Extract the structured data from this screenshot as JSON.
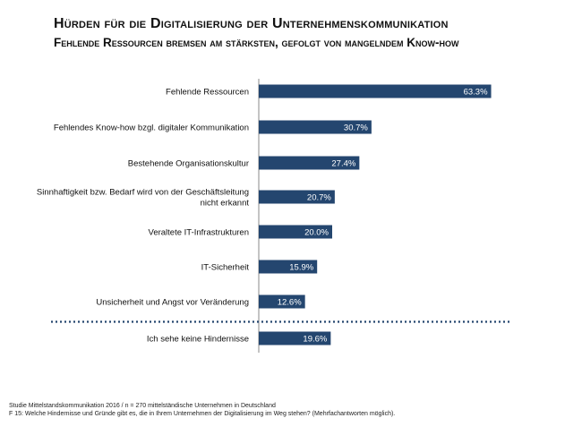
{
  "header": {
    "title": "Hürden für die Digitalisierung der Unternehmenskommunikation",
    "subtitle": "Fehlende Ressourcen bremsen am stärksten, gefolgt von mangelndem Know-how"
  },
  "chart_data": {
    "type": "bar",
    "orientation": "horizontal",
    "title": "Hürden für die Digitalisierung der Unternehmenskommunikation",
    "categories": [
      [
        "Fehlende Ressourcen"
      ],
      [
        "Fehlendes Know-how bzgl. digitaler Kommunikation"
      ],
      [
        "Bestehende Organisationskultur"
      ],
      [
        "Sinnhaftigkeit bzw. Bedarf wird von der Geschäftsleitung",
        "nicht erkannt"
      ],
      [
        "Veraltete IT-Infrastrukturen"
      ],
      [
        "IT-Sicherheit"
      ],
      [
        "Unsicherheit und Angst vor Veränderung"
      ],
      [
        "Ich sehe keine Hindernisse"
      ]
    ],
    "values": [
      63.3,
      30.7,
      27.4,
      20.7,
      20.0,
      15.9,
      12.6,
      19.6
    ],
    "value_labels": [
      "63.3%",
      "30.7%",
      "27.4%",
      "20.7%",
      "20.0%",
      "15.9%",
      "12.6%",
      "19.6%"
    ],
    "unit": "%",
    "xlim": [
      0,
      100
    ],
    "separator_before_index": 7,
    "bar_color": "#24466f",
    "separator_color": "#24466f"
  },
  "footer": {
    "source": "Studie Mittelstandskommunikation 2016 / n = 270 mittelständische Unternehmen in Deutschland",
    "question": "F 15: Welche Hindernisse und Gründe gibt es, die in Ihrem Unternehmen der Digitalisierung im Weg stehen? (Mehrfachantworten möglich)."
  }
}
